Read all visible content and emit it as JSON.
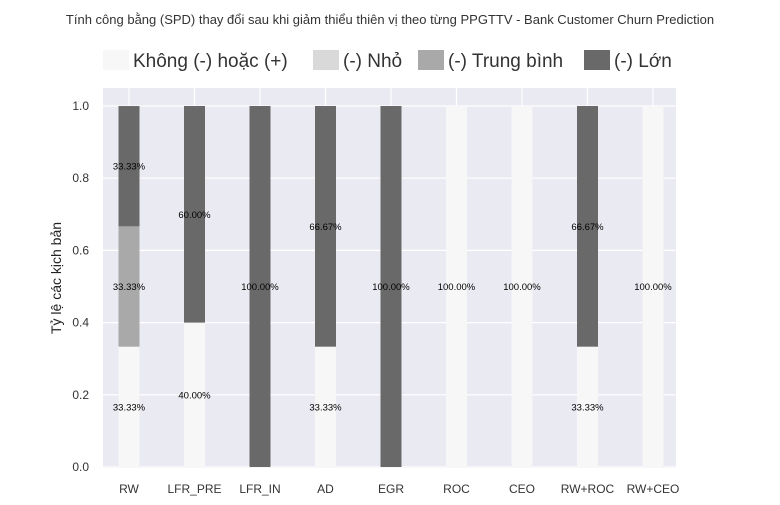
{
  "chart_data": {
    "type": "bar",
    "stacked": true,
    "title": "Tính công bằng (SPD) thay đổi sau khi giảm thiểu thiên vị theo từng PPGTTV - Bank Customer Churn Prediction",
    "xlabel": "",
    "ylabel": "Tỷ lệ các kịch bản",
    "ylim": [
      0,
      1.0
    ],
    "yticks": [
      "0.0",
      "0.2",
      "0.4",
      "0.6",
      "0.8",
      "1.0"
    ],
    "ytick_values": [
      0,
      0.2,
      0.4,
      0.6,
      0.8,
      1.0
    ],
    "grid": true,
    "legend_position": "top",
    "categories": [
      "RW",
      "LFR_PRE",
      "LFR_IN",
      "AD",
      "EGR",
      "ROC",
      "CEO",
      "RW+ROC",
      "RW+CEO"
    ],
    "series": [
      {
        "name": "Không (-) hoặc (+)",
        "color": "#f7f7f7",
        "values": [
          0.3333,
          0.4,
          0,
          0.3333,
          0,
          1.0,
          1.0,
          0.3333,
          1.0
        ],
        "labels": [
          "33.33%",
          "40.00%",
          "",
          "33.33%",
          "",
          "100.00%",
          "100.00%",
          "33.33%",
          "100.00%"
        ]
      },
      {
        "name": "(-) Nhỏ",
        "color": "#d9d9d9",
        "values": [
          0,
          0,
          0,
          0,
          0,
          0,
          0,
          0,
          0
        ],
        "labels": [
          "",
          "",
          "",
          "",
          "",
          "",
          "",
          "",
          ""
        ]
      },
      {
        "name": "(-) Trung bình",
        "color": "#a9a9a9",
        "values": [
          0.3333,
          0,
          0,
          0,
          0,
          0,
          0,
          0,
          0
        ],
        "labels": [
          "33.33%",
          "",
          "",
          "",
          "",
          "",
          "",
          "",
          ""
        ]
      },
      {
        "name": "(-) Lớn",
        "color": "#696969",
        "values": [
          0.3333,
          0.6,
          1.0,
          0.6667,
          1.0,
          0,
          0,
          0.6667,
          0
        ],
        "labels": [
          "33.33%",
          "60.00%",
          "100.00%",
          "66.67%",
          "100.00%",
          "",
          "",
          "66.67%",
          ""
        ]
      }
    ],
    "colors": {
      "plot_background": "#eaeaf2",
      "grid": "#ffffff",
      "text": "#333333"
    }
  }
}
